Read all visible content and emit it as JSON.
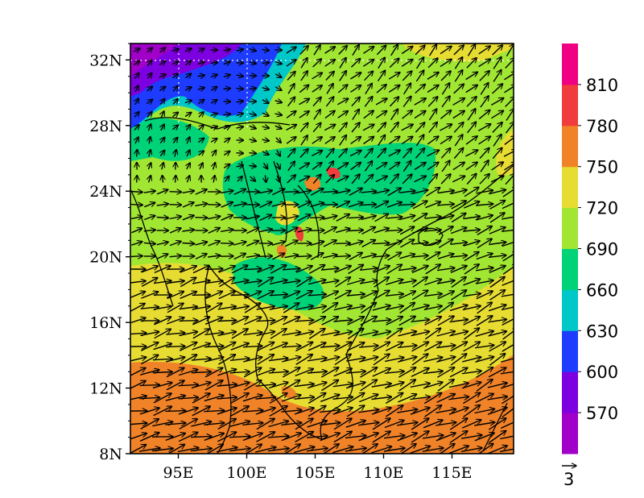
{
  "map": {
    "lat_labels": [
      "32N",
      "28N",
      "24N",
      "20N",
      "16N",
      "12N",
      "8N"
    ],
    "lat_values": [
      32,
      28,
      24,
      20,
      16,
      12,
      8
    ],
    "lon_labels": [
      "95E",
      "100E",
      "105E",
      "110E",
      "115E"
    ],
    "lon_values": [
      95,
      100,
      105,
      110,
      115
    ],
    "lon_range": [
      91.5,
      119.5
    ],
    "lat_range": [
      8,
      33
    ],
    "field_levels": [
      540,
      570,
      600,
      630,
      660,
      690,
      720,
      750,
      780,
      810
    ],
    "field_colors": [
      "#a000c8",
      "#7c00e0",
      "#1e3cff",
      "#00c8c8",
      "#00d278",
      "#a0e632",
      "#e6dc32",
      "#f08228",
      "#f03c3c",
      "#f00082"
    ],
    "vector_reference_label": "3",
    "gridlines": "dotted, upper-left only"
  },
  "colorbar": {
    "labels": [
      "570",
      "600",
      "630",
      "660",
      "690",
      "720",
      "750",
      "780",
      "810"
    ]
  }
}
